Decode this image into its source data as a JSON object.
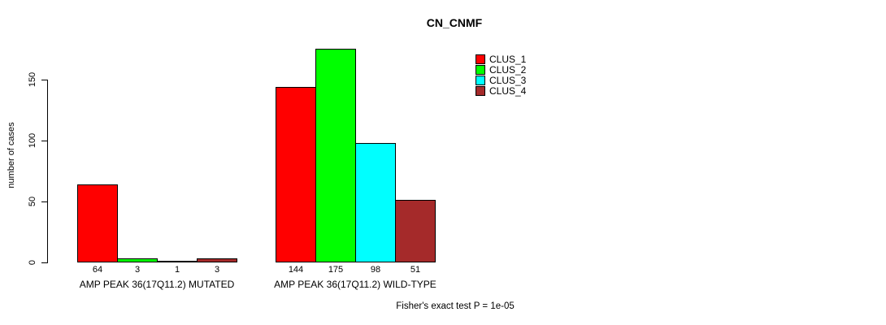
{
  "chart_data": {
    "type": "bar",
    "title": "CN_CNMF",
    "ylabel": "number of cases",
    "xlabel": "",
    "ylim": [
      0,
      175
    ],
    "yticks": [
      0,
      50,
      100,
      150
    ],
    "grid": false,
    "legend_position": "top-right",
    "categories": [
      "AMP PEAK 36(17Q11.2) MUTATED",
      "AMP PEAK 36(17Q11.2) WILD-TYPE"
    ],
    "series": [
      {
        "name": "CLUS_1",
        "color": "#FF0000",
        "values": [
          64,
          144
        ]
      },
      {
        "name": "CLUS_2",
        "color": "#00FF00",
        "values": [
          3,
          175
        ]
      },
      {
        "name": "CLUS_3",
        "color": "#00FFFF",
        "values": [
          1,
          98
        ]
      },
      {
        "name": "CLUS_4",
        "color": "#A52A2A",
        "values": [
          3,
          51
        ]
      }
    ],
    "bar_value_labels": [
      [
        64,
        3,
        1,
        3
      ],
      [
        144,
        175,
        98,
        51
      ]
    ],
    "annotation": "Fisher's exact test P = 1e-05",
    "bar_border_color": "#000000",
    "axis_color": "#000000"
  }
}
